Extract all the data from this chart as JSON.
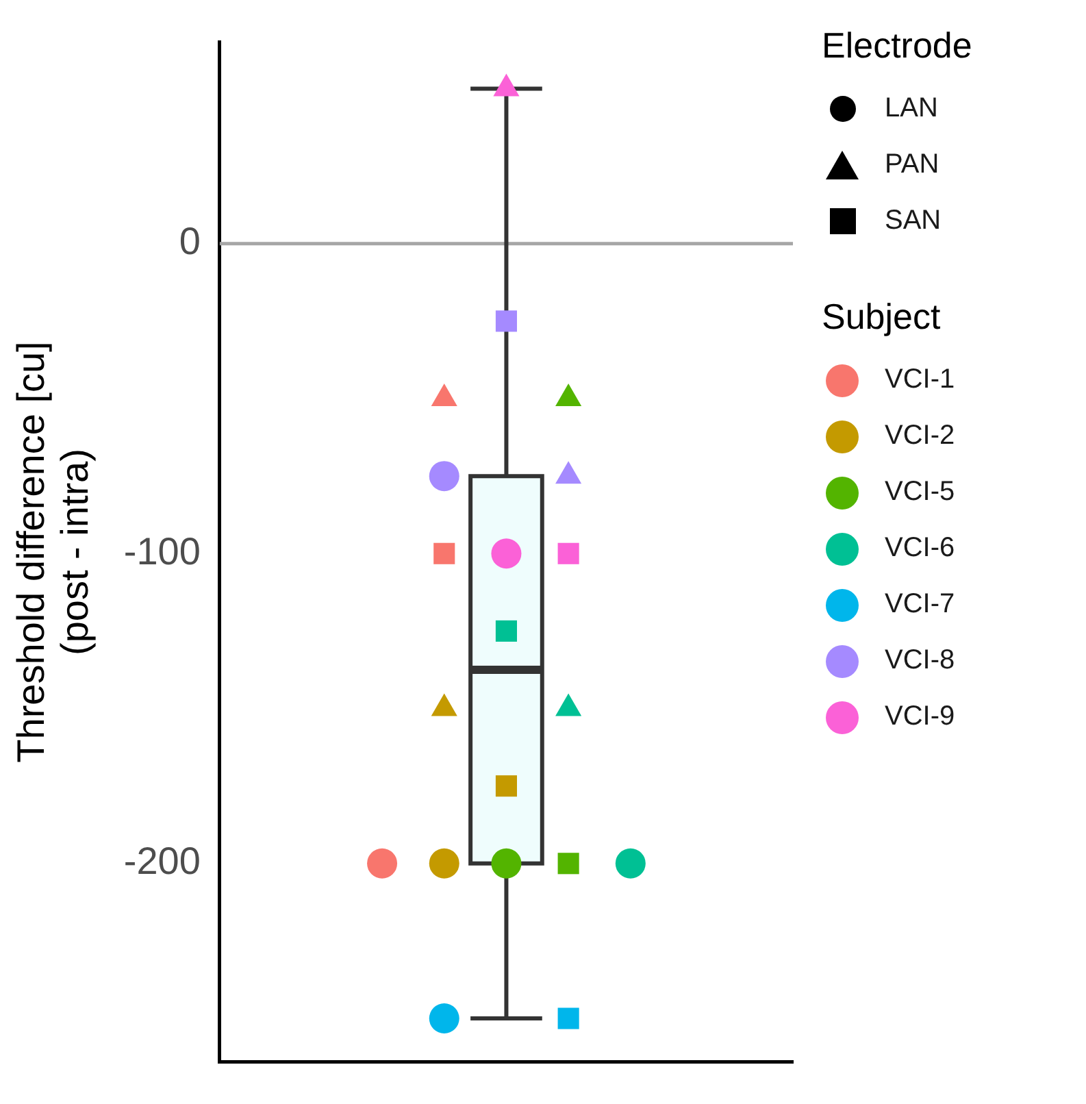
{
  "chart_data": {
    "type": "box",
    "ylabel": "Threshold difference [cu]\n(post - intra)",
    "categories": [
      null
    ],
    "ylim": [
      -264,
      65
    ],
    "yticks": [
      0,
      -100,
      -200
    ],
    "tick_labels": "y",
    "grid": false,
    "legend": "right",
    "legend_title": [
      "Electrode",
      "Subject"
    ],
    "ref_lines": [
      {
        "axis": "y",
        "value": 0,
        "color": "#a6a6a6"
      }
    ],
    "series": [
      {
        "color": "#effdfd",
        "boxes": [
          {
            "low": -250,
            "q1": -200,
            "median": -137.5,
            "q3": -75,
            "high": 50
          }
        ]
      },
      {
        "type": "scatter",
        "name": "LAN",
        "color": "#000000",
        "marker": "circle",
        "values": [
          null
        ]
      },
      {
        "type": "scatter",
        "name": "PAN",
        "color": "#000000",
        "marker": "triangle",
        "values": [
          null
        ]
      },
      {
        "type": "scatter",
        "name": "SAN",
        "color": "#000000",
        "marker": "square",
        "values": [
          null
        ]
      },
      {
        "type": "scatter",
        "name": "VCI-1",
        "color": "#f8766d",
        "marker": "circle",
        "values": [
          -200
        ]
      },
      {
        "type": "scatter",
        "color": "#f8766d",
        "marker": "triangle",
        "values": [
          -50
        ]
      },
      {
        "type": "scatter",
        "color": "#f8766d",
        "marker": "square",
        "values": [
          -100
        ]
      },
      {
        "type": "scatter",
        "name": "VCI-2",
        "color": "#c49a00",
        "marker": "circle",
        "values": [
          -200
        ]
      },
      {
        "type": "scatter",
        "color": "#c49a00",
        "marker": "triangle",
        "values": [
          -150
        ]
      },
      {
        "type": "scatter",
        "color": "#c49a00",
        "marker": "square",
        "values": [
          -175
        ]
      },
      {
        "type": "scatter",
        "name": "VCI-5",
        "color": "#53b400",
        "marker": "circle",
        "values": [
          -200
        ]
      },
      {
        "type": "scatter",
        "color": "#53b400",
        "marker": "triangle",
        "values": [
          -50
        ]
      },
      {
        "type": "scatter",
        "color": "#53b400",
        "marker": "square",
        "values": [
          -200
        ]
      },
      {
        "type": "scatter",
        "name": "VCI-6",
        "color": "#00c094",
        "marker": "circle",
        "values": [
          -200
        ]
      },
      {
        "type": "scatter",
        "color": "#00c094",
        "marker": "square",
        "values": [
          -125
        ]
      },
      {
        "type": "scatter",
        "color": "#00c094",
        "marker": "triangle",
        "values": [
          -150
        ]
      },
      {
        "type": "scatter",
        "name": "VCI-7",
        "color": "#00b6eb",
        "marker": "circle",
        "values": [
          -250
        ]
      },
      {
        "type": "scatter",
        "color": "#00b6eb",
        "marker": "square",
        "values": [
          -250
        ]
      },
      {
        "type": "scatter",
        "name": "VCI-8",
        "color": "#a58aff",
        "marker": "circle",
        "values": [
          -75
        ]
      },
      {
        "type": "scatter",
        "color": "#a58aff",
        "marker": "square",
        "values": [
          -25
        ]
      },
      {
        "type": "scatter",
        "color": "#a58aff",
        "marker": "triangle",
        "values": [
          -75
        ]
      },
      {
        "type": "scatter",
        "name": "VCI-9",
        "color": "#fb61d7",
        "marker": "circle",
        "values": [
          -100
        ]
      },
      {
        "type": "scatter",
        "color": "#fb61d7",
        "marker": "triangle",
        "values": [
          50
        ]
      },
      {
        "type": "scatter",
        "color": "#fb61d7",
        "marker": "square",
        "values": [
          -100
        ]
      }
    ]
  }
}
